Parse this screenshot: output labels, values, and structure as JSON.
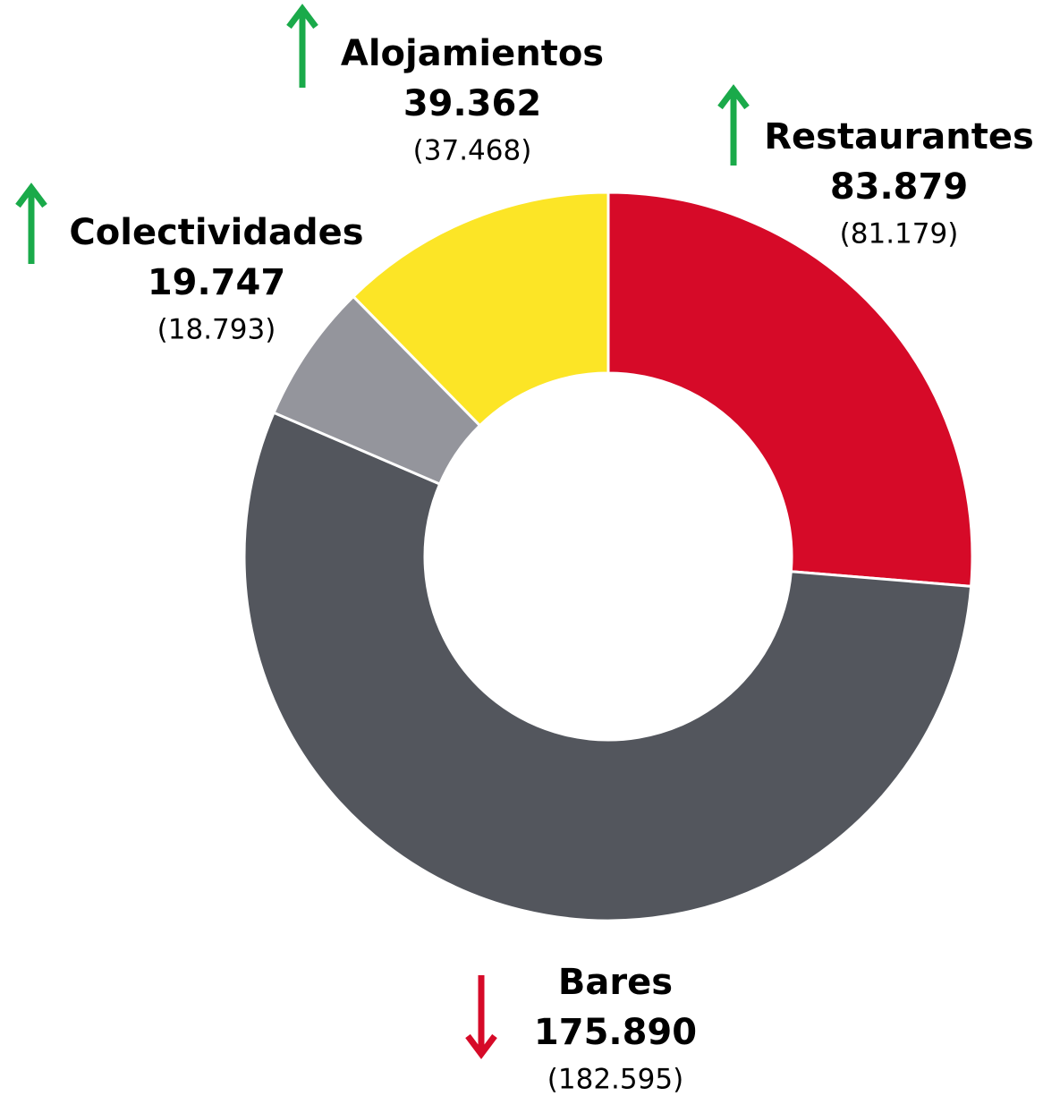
{
  "chart_data": {
    "type": "donut",
    "categories": [
      "Restaurantes",
      "Bares",
      "Colectividades",
      "Alojamientos"
    ],
    "values": [
      83879,
      175890,
      19747,
      39362
    ],
    "value_labels": [
      "83.879",
      "175.890",
      "19.747",
      "39.362"
    ],
    "previous_value_labels": [
      "(81.179)",
      "(182.595)",
      "(18.793)",
      "(37.468)"
    ],
    "trends": [
      "up",
      "down",
      "up",
      "up"
    ],
    "colors": [
      "#d60a28",
      "#53565d",
      "#94959c",
      "#fce526"
    ]
  }
}
